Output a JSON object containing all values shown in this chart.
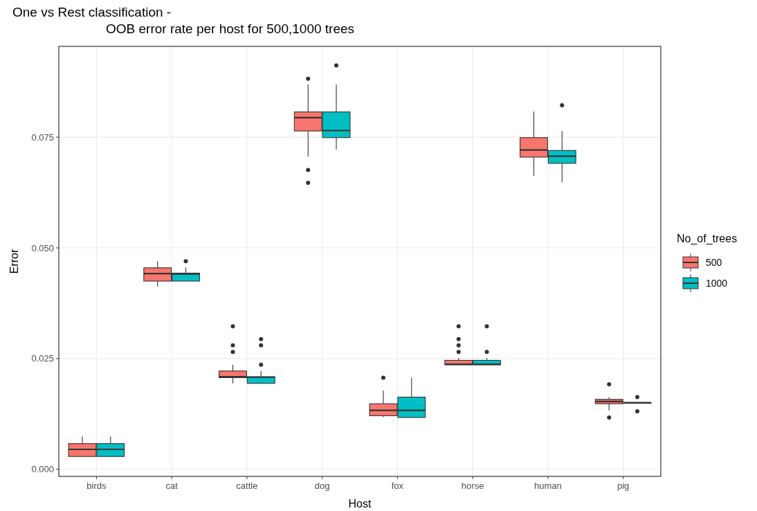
{
  "chart_data": {
    "type": "box",
    "title": "One vs Rest classification -\nOOB error rate per host for 500,1000 trees",
    "xlabel": "Host",
    "ylabel": "Error",
    "legend_title": "No_of_trees",
    "legend": "right",
    "grid": true,
    "categories": [
      "birds",
      "cat",
      "cattle",
      "dog",
      "fox",
      "horse",
      "human",
      "pig"
    ],
    "ylim": [
      -0.0016,
      0.0955
    ],
    "yticks": [
      {
        "value": 0,
        "label": "0.000"
      },
      {
        "value": 0.025,
        "label": "0.025"
      },
      {
        "value": 0.05,
        "label": "0.050"
      },
      {
        "value": 0.075,
        "label": "0.075"
      }
    ],
    "series": [
      {
        "name": "500",
        "color": "#f8766d",
        "boxes": [
          {
            "low": 0.0029,
            "q1": 0.0029,
            "median": 0.0045,
            "q3": 0.0058,
            "high": 0.0074
          },
          {
            "low": 0.0413,
            "q1": 0.0425,
            "median": 0.0442,
            "q3": 0.0455,
            "high": 0.047
          },
          {
            "low": 0.0194,
            "q1": 0.0207,
            "median": 0.0209,
            "q3": 0.0222,
            "high": 0.0236,
            "outliers": [
              0.0323,
              0.028,
              0.0265
            ]
          },
          {
            "low": 0.0706,
            "q1": 0.0764,
            "median": 0.0794,
            "q3": 0.0807,
            "high": 0.0869,
            "outliers": [
              0.0882,
              0.0676,
              0.0647
            ]
          },
          {
            "low": 0.0118,
            "q1": 0.0121,
            "median": 0.0133,
            "q3": 0.0148,
            "high": 0.0178,
            "outliers": [
              0.0207
            ]
          },
          {
            "low": 0.0236,
            "q1": 0.0236,
            "median": 0.0237,
            "q3": 0.0246,
            "high": 0.0251,
            "outliers": [
              0.0323,
              0.0294,
              0.028,
              0.0265
            ]
          },
          {
            "low": 0.0663,
            "q1": 0.0705,
            "median": 0.0721,
            "q3": 0.0749,
            "high": 0.0808
          },
          {
            "low": 0.0133,
            "q1": 0.0148,
            "median": 0.0153,
            "q3": 0.0158,
            "high": 0.0163,
            "outliers": [
              0.0192,
              0.0117
            ]
          }
        ]
      },
      {
        "name": "1000",
        "color": "#00bfc4",
        "boxes": [
          {
            "low": 0.0029,
            "q1": 0.0029,
            "median": 0.0045,
            "q3": 0.0058,
            "high": 0.0074
          },
          {
            "low": 0.0425,
            "q1": 0.0425,
            "median": 0.0441,
            "q3": 0.0443,
            "high": 0.0456,
            "outliers": [
              0.047
            ]
          },
          {
            "low": 0.0194,
            "q1": 0.0194,
            "median": 0.0208,
            "q3": 0.0209,
            "high": 0.0222,
            "outliers": [
              0.0294,
              0.028,
              0.0236
            ]
          },
          {
            "low": 0.0722,
            "q1": 0.0749,
            "median": 0.0765,
            "q3": 0.0807,
            "high": 0.0869,
            "outliers": [
              0.0912
            ]
          },
          {
            "low": 0.0117,
            "q1": 0.0117,
            "median": 0.0133,
            "q3": 0.0163,
            "high": 0.0207
          },
          {
            "low": 0.0236,
            "q1": 0.0236,
            "median": 0.0237,
            "q3": 0.0246,
            "high": 0.0251,
            "outliers": [
              0.0323,
              0.0265
            ]
          },
          {
            "low": 0.0648,
            "q1": 0.0691,
            "median": 0.0707,
            "q3": 0.072,
            "high": 0.0764,
            "outliers": [
              0.0822
            ]
          },
          {
            "low": 0.0149,
            "q1": 0.0149,
            "median": 0.015,
            "q3": 0.0151,
            "high": 0.0151,
            "outliers": [
              0.0163,
              0.0131
            ]
          }
        ]
      }
    ]
  }
}
